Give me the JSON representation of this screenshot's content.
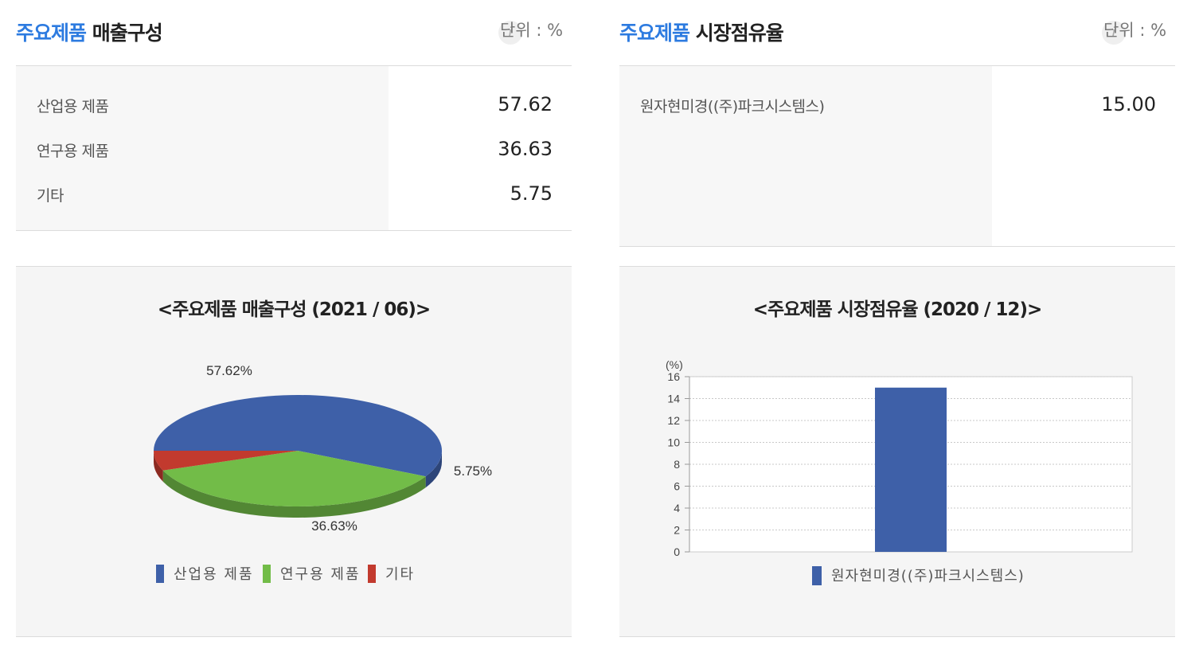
{
  "left": {
    "title_accent": "주요제품",
    "title_rest": "매출구성",
    "info_icon": "info-icon",
    "unit_label": "단위 : %",
    "rows": [
      {
        "label": "산업용 제품",
        "value": "57.62"
      },
      {
        "label": "연구용 제품",
        "value": "36.63"
      },
      {
        "label": "기타",
        "value": "5.75"
      }
    ]
  },
  "right": {
    "title_accent": "주요제품",
    "title_rest": "시장점유율",
    "info_icon": "info-icon",
    "unit_label": "단위 : %",
    "rows": [
      {
        "label": "원자현미경((주)파크시스템스)",
        "value": "15.00"
      }
    ]
  },
  "colors": {
    "accent": "#2d7be0",
    "blue": "#3e60a8",
    "green": "#72bc48",
    "red": "#c23a2e"
  },
  "chart_data": [
    {
      "type": "pie",
      "title": "<주요제품 매출구성 (2021 / 06)>",
      "categories": [
        "산업용 제품",
        "연구용 제품",
        "기타"
      ],
      "values": [
        57.62,
        36.63,
        5.75
      ],
      "data_labels": [
        "57.62%",
        "36.63%",
        "5.75%"
      ],
      "colors": [
        "#3e60a8",
        "#72bc48",
        "#c23a2e"
      ],
      "legend": "bottom"
    },
    {
      "type": "bar",
      "title": "<주요제품 시장점유율 (2020 / 12)>",
      "ylabel": "(%)",
      "categories": [
        "원자현미경((주)파크시스템스)"
      ],
      "series": [
        {
          "name": "원자현미경((주)파크시스템스)",
          "values": [
            15.0
          ]
        }
      ],
      "ylim": [
        0,
        16
      ],
      "yticks": [
        "0",
        "2",
        "4",
        "6",
        "8",
        "10",
        "12",
        "14",
        "16"
      ],
      "grid": true,
      "legend": "bottom",
      "colors": [
        "#3e60a8"
      ]
    }
  ]
}
